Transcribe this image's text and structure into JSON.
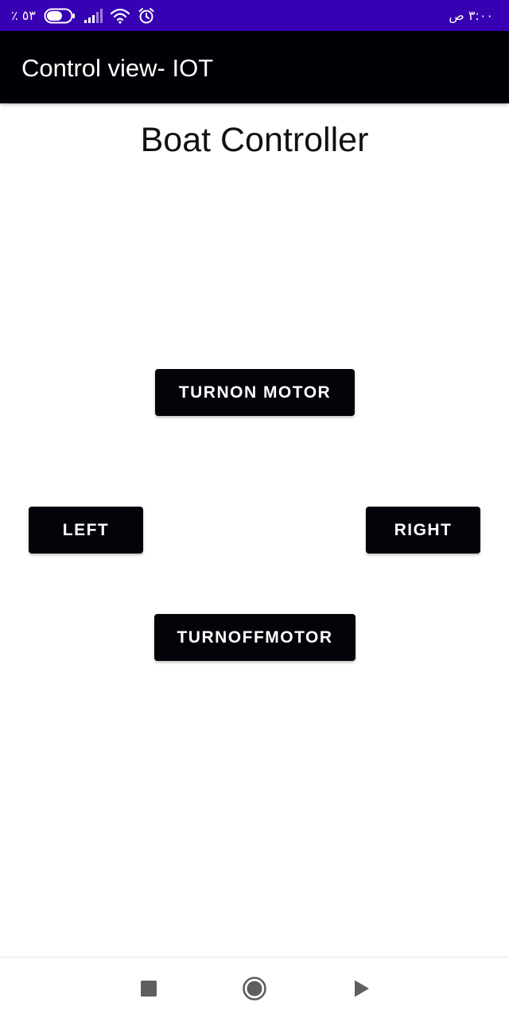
{
  "status_bar": {
    "battery_text": "٪ ٥٣",
    "time": "٣:٠٠ ص",
    "icons": [
      "battery-icon",
      "signal-icon",
      "wifi-icon",
      "alarm-icon"
    ]
  },
  "app_bar": {
    "title": "Control view- IOT"
  },
  "main": {
    "heading": "Boat Controller",
    "buttons": {
      "turn_on": "TURNON MOTOR",
      "left": "LEFT",
      "right": "RIGHT",
      "turn_off": "TURNOFFMOTOR"
    }
  },
  "nav_bar": {
    "icons": [
      "recent-apps-icon",
      "home-icon",
      "back-icon"
    ]
  },
  "colors": {
    "status_bar": "#3700b3",
    "app_bar": "#020006",
    "button": "#05020a",
    "button_text": "#ffffff"
  }
}
